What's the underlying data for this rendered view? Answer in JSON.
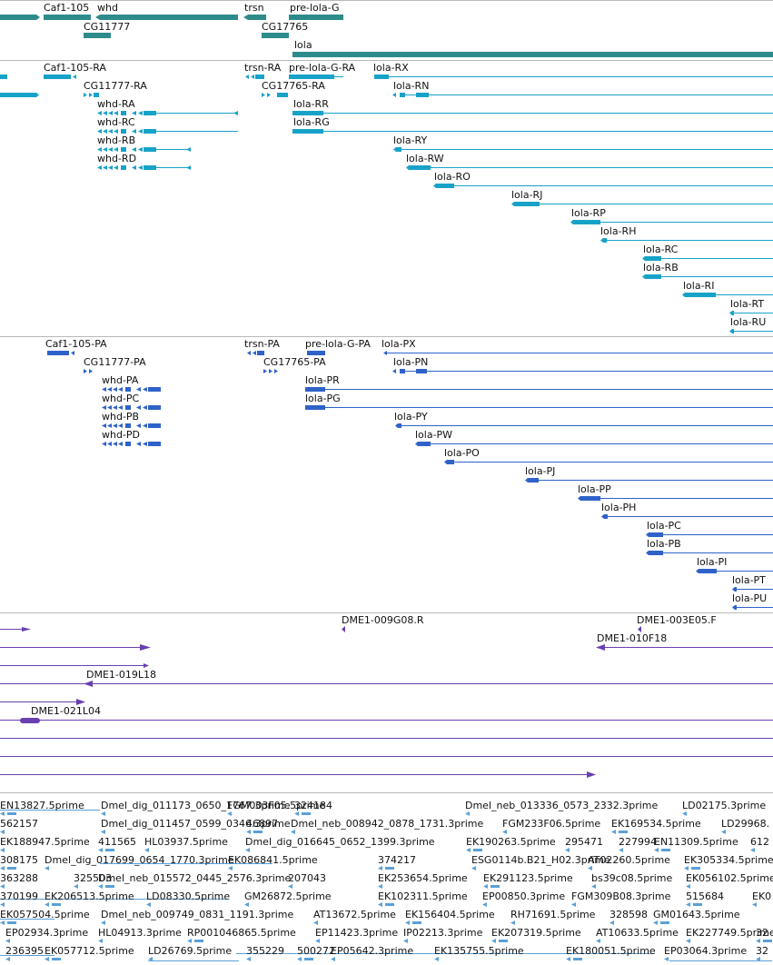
{
  "colors": {
    "gene": "#2e8b8b",
    "transcript": "#17a2c8",
    "protein": "#2f62c9",
    "clone": "#6a40b0",
    "est": "#5aa0d8",
    "separator": "#b8b8b8"
  },
  "tracks": {
    "genes": {
      "labels": [
        "Caf1-105",
        "whd",
        "trsn",
        "pre-lola-G",
        "CG11777",
        "CG17765",
        "lola"
      ]
    },
    "transcripts": {
      "labels": [
        "Caf1-105-RA",
        "trsn-RA",
        "pre-lola-G-RA",
        "lola-RX",
        "CG11777-RA",
        "CG17765-RA",
        "lola-RN",
        "whd-RA",
        "lola-RR",
        "whd-RC",
        "lola-RG",
        "whd-RB",
        "lola-RY",
        "whd-RD",
        "lola-RW",
        "lola-RO",
        "lola-RJ",
        "lola-RP",
        "lola-RH",
        "lola-RC",
        "lola-RB",
        "lola-RI",
        "lola-RT",
        "lola-RU"
      ]
    },
    "proteins": {
      "labels": [
        "Caf1-105-PA",
        "trsn-PA",
        "pre-lola-G-PA",
        "lola-PX",
        "CG11777-PA",
        "CG17765-PA",
        "lola-PN",
        "whd-PA",
        "lola-PR",
        "whd-PC",
        "lola-PG",
        "whd-PB",
        "lola-PY",
        "whd-PD",
        "lola-PW",
        "lola-PO",
        "lola-PJ",
        "lola-PP",
        "lola-PH",
        "lola-PC",
        "lola-PB",
        "lola-PI",
        "lola-PT",
        "lola-PU"
      ]
    },
    "clones": {
      "labels": [
        "DME1-009G08.R",
        "DME1-003E05.F",
        "DME1-010F18",
        "DME1-019L18",
        "DME1-021L04"
      ]
    },
    "ests": {
      "rows": [
        [
          "EN13827.5prime",
          "Dmel_dig_011173_0650_1767.3prime",
          "FGM003F05.5prime",
          "324184",
          "Dmel_neb_013336_0573_2332.3prime",
          "LD02175.3prime"
        ],
        [
          "562157",
          "Dmel_dig_011457_0599_0346.3prime",
          "46897",
          "Dmel_neb_008942_0878_1731.3prime",
          "FGM233F06.5prime",
          "EK169534.5prime",
          "LD29968."
        ],
        [
          "EK188947.5prime",
          "411565",
          "HL03937.5prime",
          "Dmel_dig_016645_0652_1399.3prime",
          "EK190263.5prime",
          "295471",
          "227994",
          "EN11309.5prime",
          "612"
        ],
        [
          "308175",
          "Dmel_dig_017699_0654_1770.3prime",
          "EK086841.5prime",
          "374217",
          "ESG0114b.B21_H02.3prime",
          "AT02260.5prime",
          "EK305334.5prime"
        ],
        [
          "363288",
          "325503",
          "Dmel_neb_015572_0445_2576.3prime",
          "207043",
          "EK253654.5prime",
          "EK291123.5prime",
          "bs39c08.5prime",
          "EK056102.5prime"
        ],
        [
          "370199",
          "EK206513.5prime",
          "LD08330.5prime",
          "GM26872.5prime",
          "EK102311.5prime",
          "EP00850.3prime",
          "FGM309B08.3prime",
          "515684",
          "EK0"
        ],
        [
          "EK057504.5prime",
          "Dmel_neb_009749_0831_1191.3prime",
          "AT13672.5prime",
          "EK156404.5prime",
          "RH71691.5prime",
          "328598",
          "GM01643.5prime"
        ],
        [
          "EP02934.3prime",
          "HL04913.3prime",
          "RP001046865.5prime",
          "EP11423.3prime",
          "IP02213.3prime",
          "EK207319.5prime",
          "AT10633.5prime",
          "EK227749.5prime",
          "32"
        ],
        [
          "236395",
          "EK057712.5prime",
          "LD26769.5prime",
          "355229",
          "500272",
          "EP05642.3prime",
          "EK135755.5prime",
          "EK180051.5prime",
          "EP03064.3prime",
          "32"
        ]
      ]
    }
  }
}
